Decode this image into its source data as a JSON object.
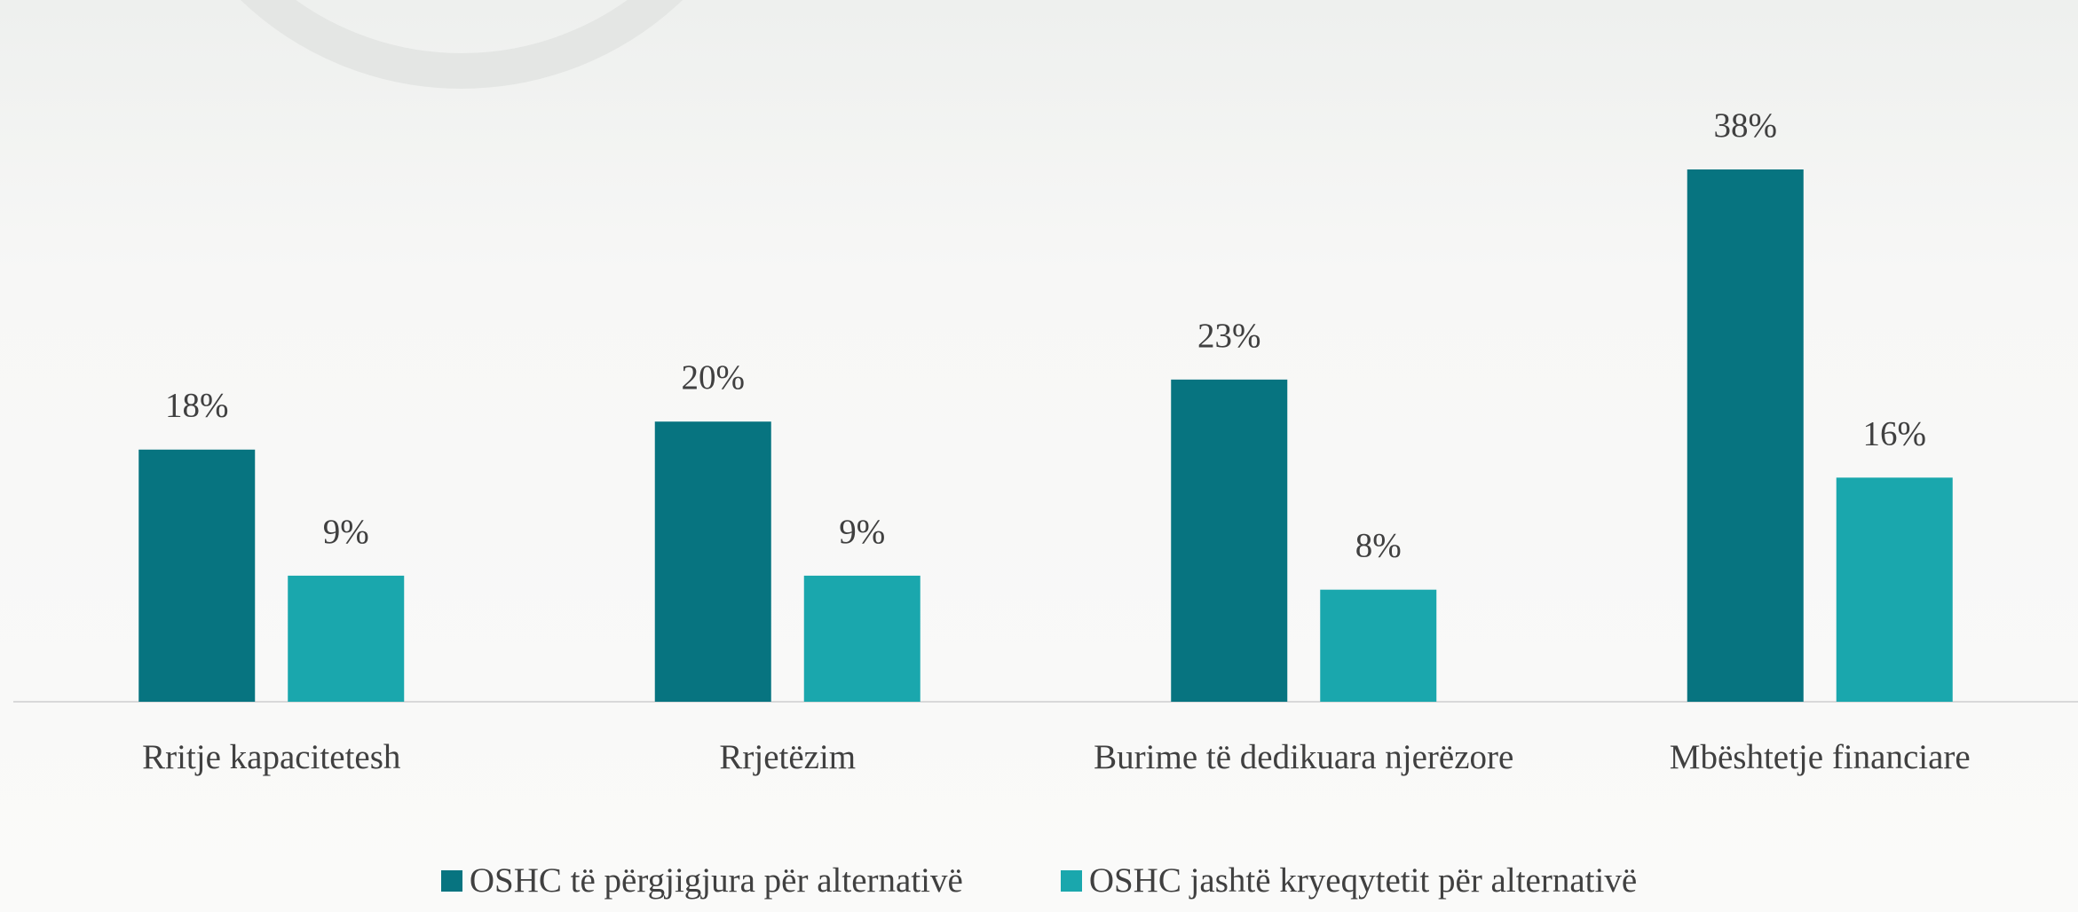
{
  "chart_data": {
    "type": "bar",
    "categories": [
      "Rritje kapacitetesh",
      "Rrjetëzim",
      "Burime të dedikuara njerëzore",
      "Mbështetje financiare"
    ],
    "series": [
      {
        "name": "OSHC të përgjigjura për alternativë",
        "color": "#077480",
        "values": [
          18,
          20,
          23,
          38
        ],
        "value_labels": [
          "18%",
          "20%",
          "23%",
          "38%"
        ]
      },
      {
        "name": "OSHC jashtë kryeqytetit për alternativë",
        "color": "#1aa7ad",
        "values": [
          9,
          9,
          8,
          16
        ],
        "value_labels": [
          "9%",
          "9%",
          "8%",
          "16%"
        ]
      }
    ]
  }
}
